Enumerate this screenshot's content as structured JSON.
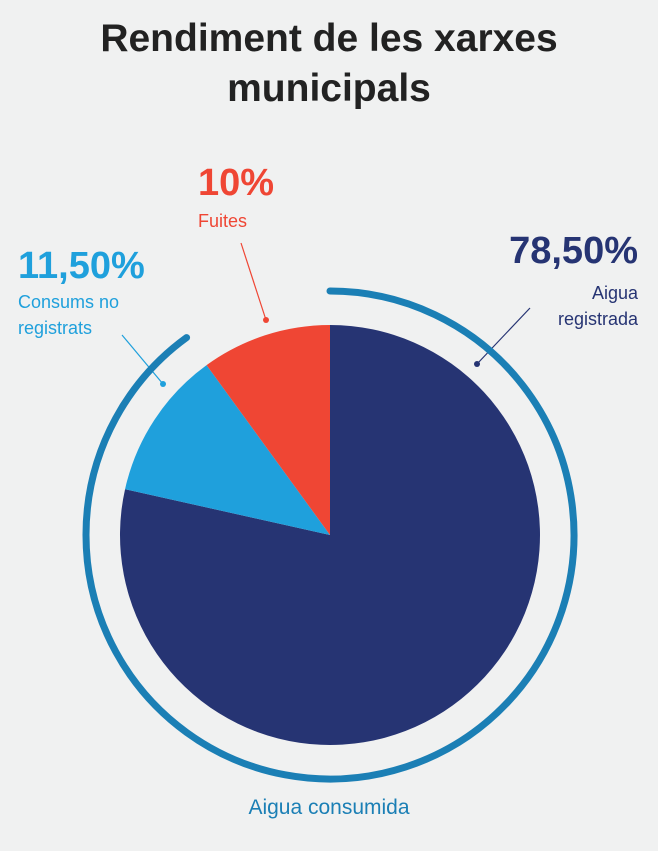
{
  "chart_data": {
    "type": "pie",
    "title": "Rendiment de les xarxes municipals",
    "categories": [
      "Aigua registrada",
      "Consums no registrats",
      "Fuites"
    ],
    "values": [
      78.5,
      11.5,
      10
    ],
    "value_labels": [
      "78,50%",
      "11,50%",
      "10%"
    ],
    "colors": [
      "#263473",
      "#1fa0dc",
      "#ef4634"
    ],
    "annotation": "Aigua consumida",
    "annotation_color": "#1b7fb5"
  }
}
